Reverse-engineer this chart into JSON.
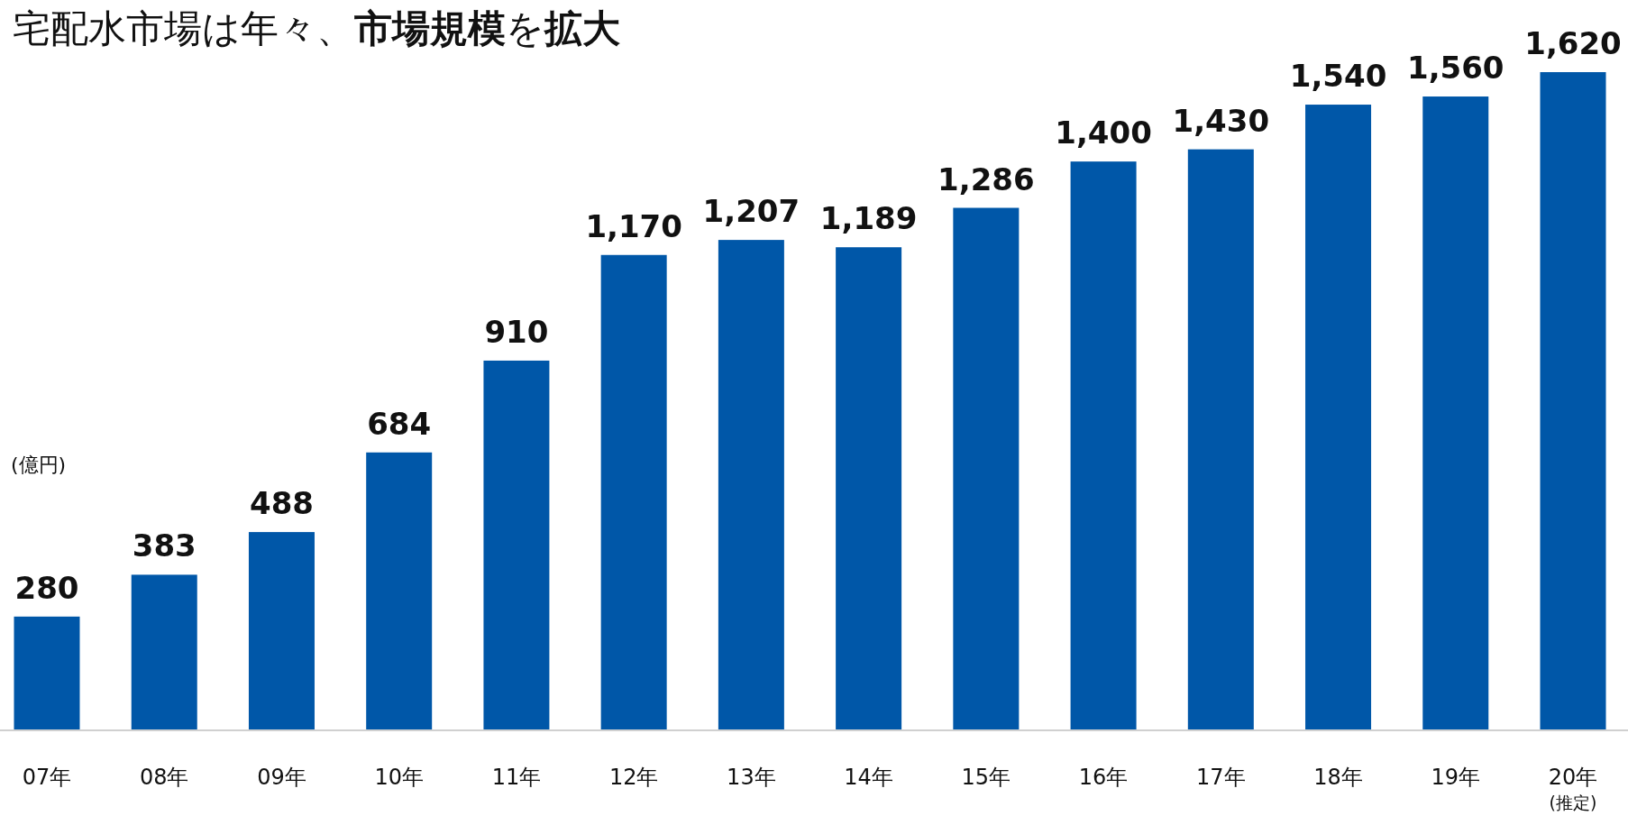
{
  "chart_data": {
    "type": "bar",
    "title": "宅配水市場は年々、**市場規模**を**拡大**",
    "ylabel": "(億円)",
    "categories": [
      "07年",
      "08年",
      "09年",
      "10年",
      "11年",
      "12年",
      "13年",
      "14年",
      "15年",
      "16年",
      "17年",
      "18年",
      "19年",
      "20年\n(推定)"
    ],
    "values": [
      280,
      383,
      488,
      684,
      910,
      1170,
      1207,
      1189,
      1286,
      1400,
      1430,
      1540,
      1560,
      1620
    ],
    "value_labels": [
      "280",
      "383",
      "488",
      "684",
      "910",
      "1,170",
      "1,207",
      "1,189",
      "1,286",
      "1,400",
      "1,430",
      "1,540",
      "1,560",
      "1,620"
    ],
    "color": "#0057a8"
  }
}
